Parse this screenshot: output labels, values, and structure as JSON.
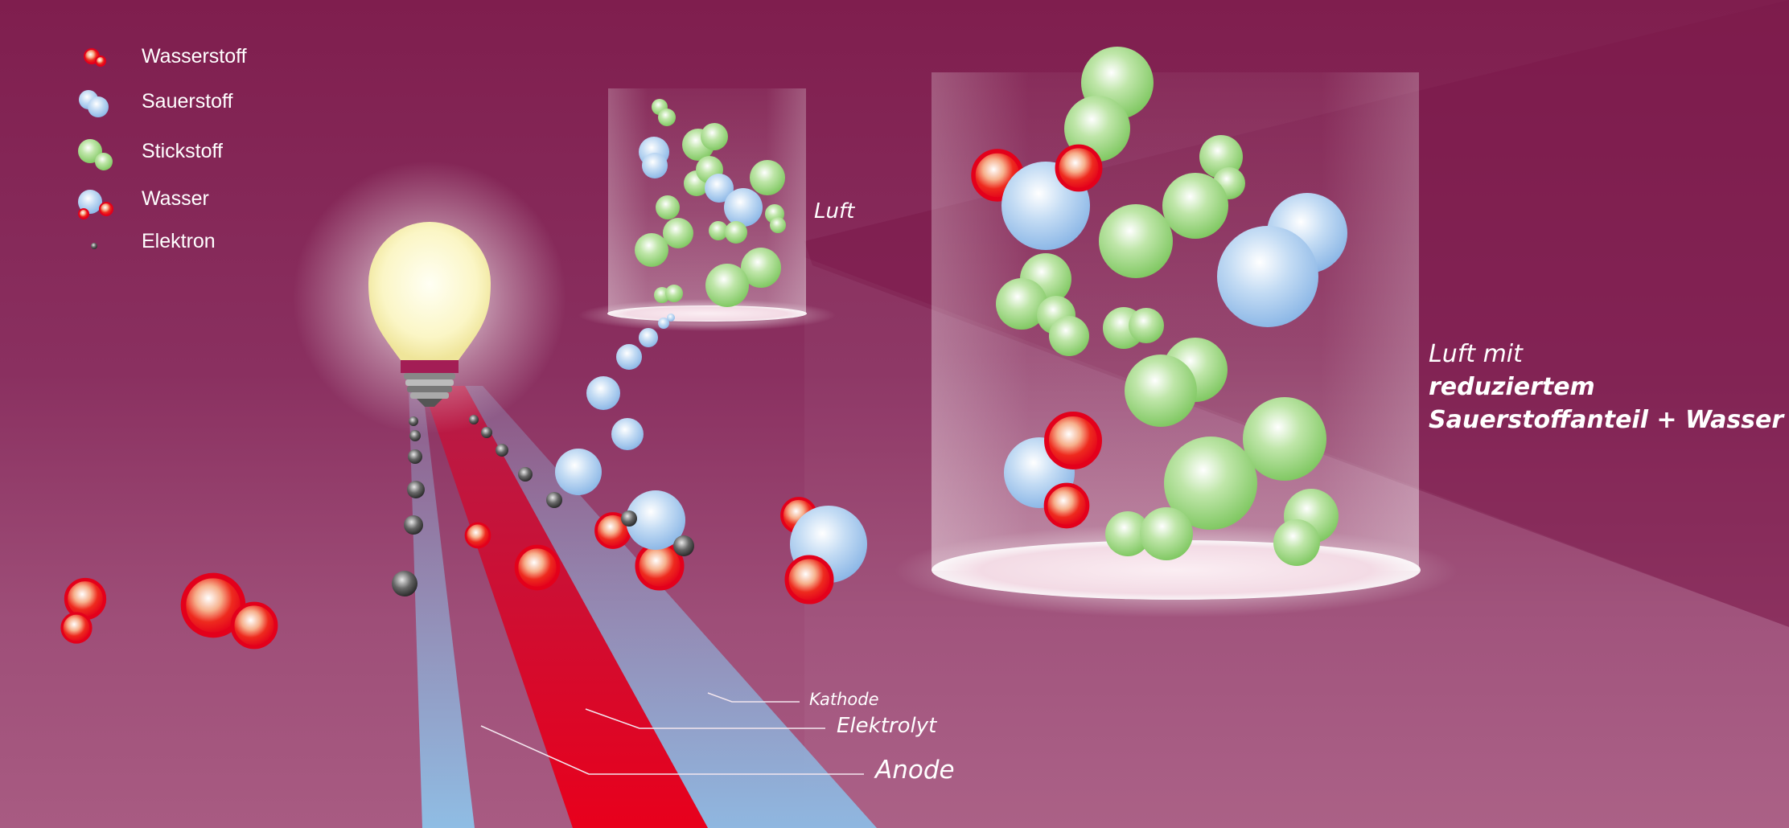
{
  "legend": {
    "items": [
      {
        "id": "wasserstoff",
        "label": "Wasserstoff",
        "icon": "hydrogen-molecule-icon"
      },
      {
        "id": "sauerstoff",
        "label": "Sauerstoff",
        "icon": "oxygen-molecule-icon"
      },
      {
        "id": "stickstoff",
        "label": "Stickstoff",
        "icon": "nitrogen-molecule-icon"
      },
      {
        "id": "wasser",
        "label": "Wasser",
        "icon": "water-molecule-icon"
      },
      {
        "id": "elektron",
        "label": "Elektron",
        "icon": "electron-icon"
      }
    ]
  },
  "labels": {
    "luft": "Luft",
    "reduced_line1": "Luft mit",
    "reduced_line2": "reduziertem",
    "reduced_line3": "Sauerstoffanteil + Wasser",
    "kathode": "Kathode",
    "elektrolyt": "Elektrolyt",
    "anode": "Anode"
  },
  "colors": {
    "background": "#7f1e4e",
    "hydrogen": "#e3001b",
    "oxygen": "#9cc3ea",
    "nitrogen": "#8fcf72",
    "electron": "#333333",
    "anode_band": "#8fb7e0",
    "electrolyte_band": "#e3001b"
  }
}
